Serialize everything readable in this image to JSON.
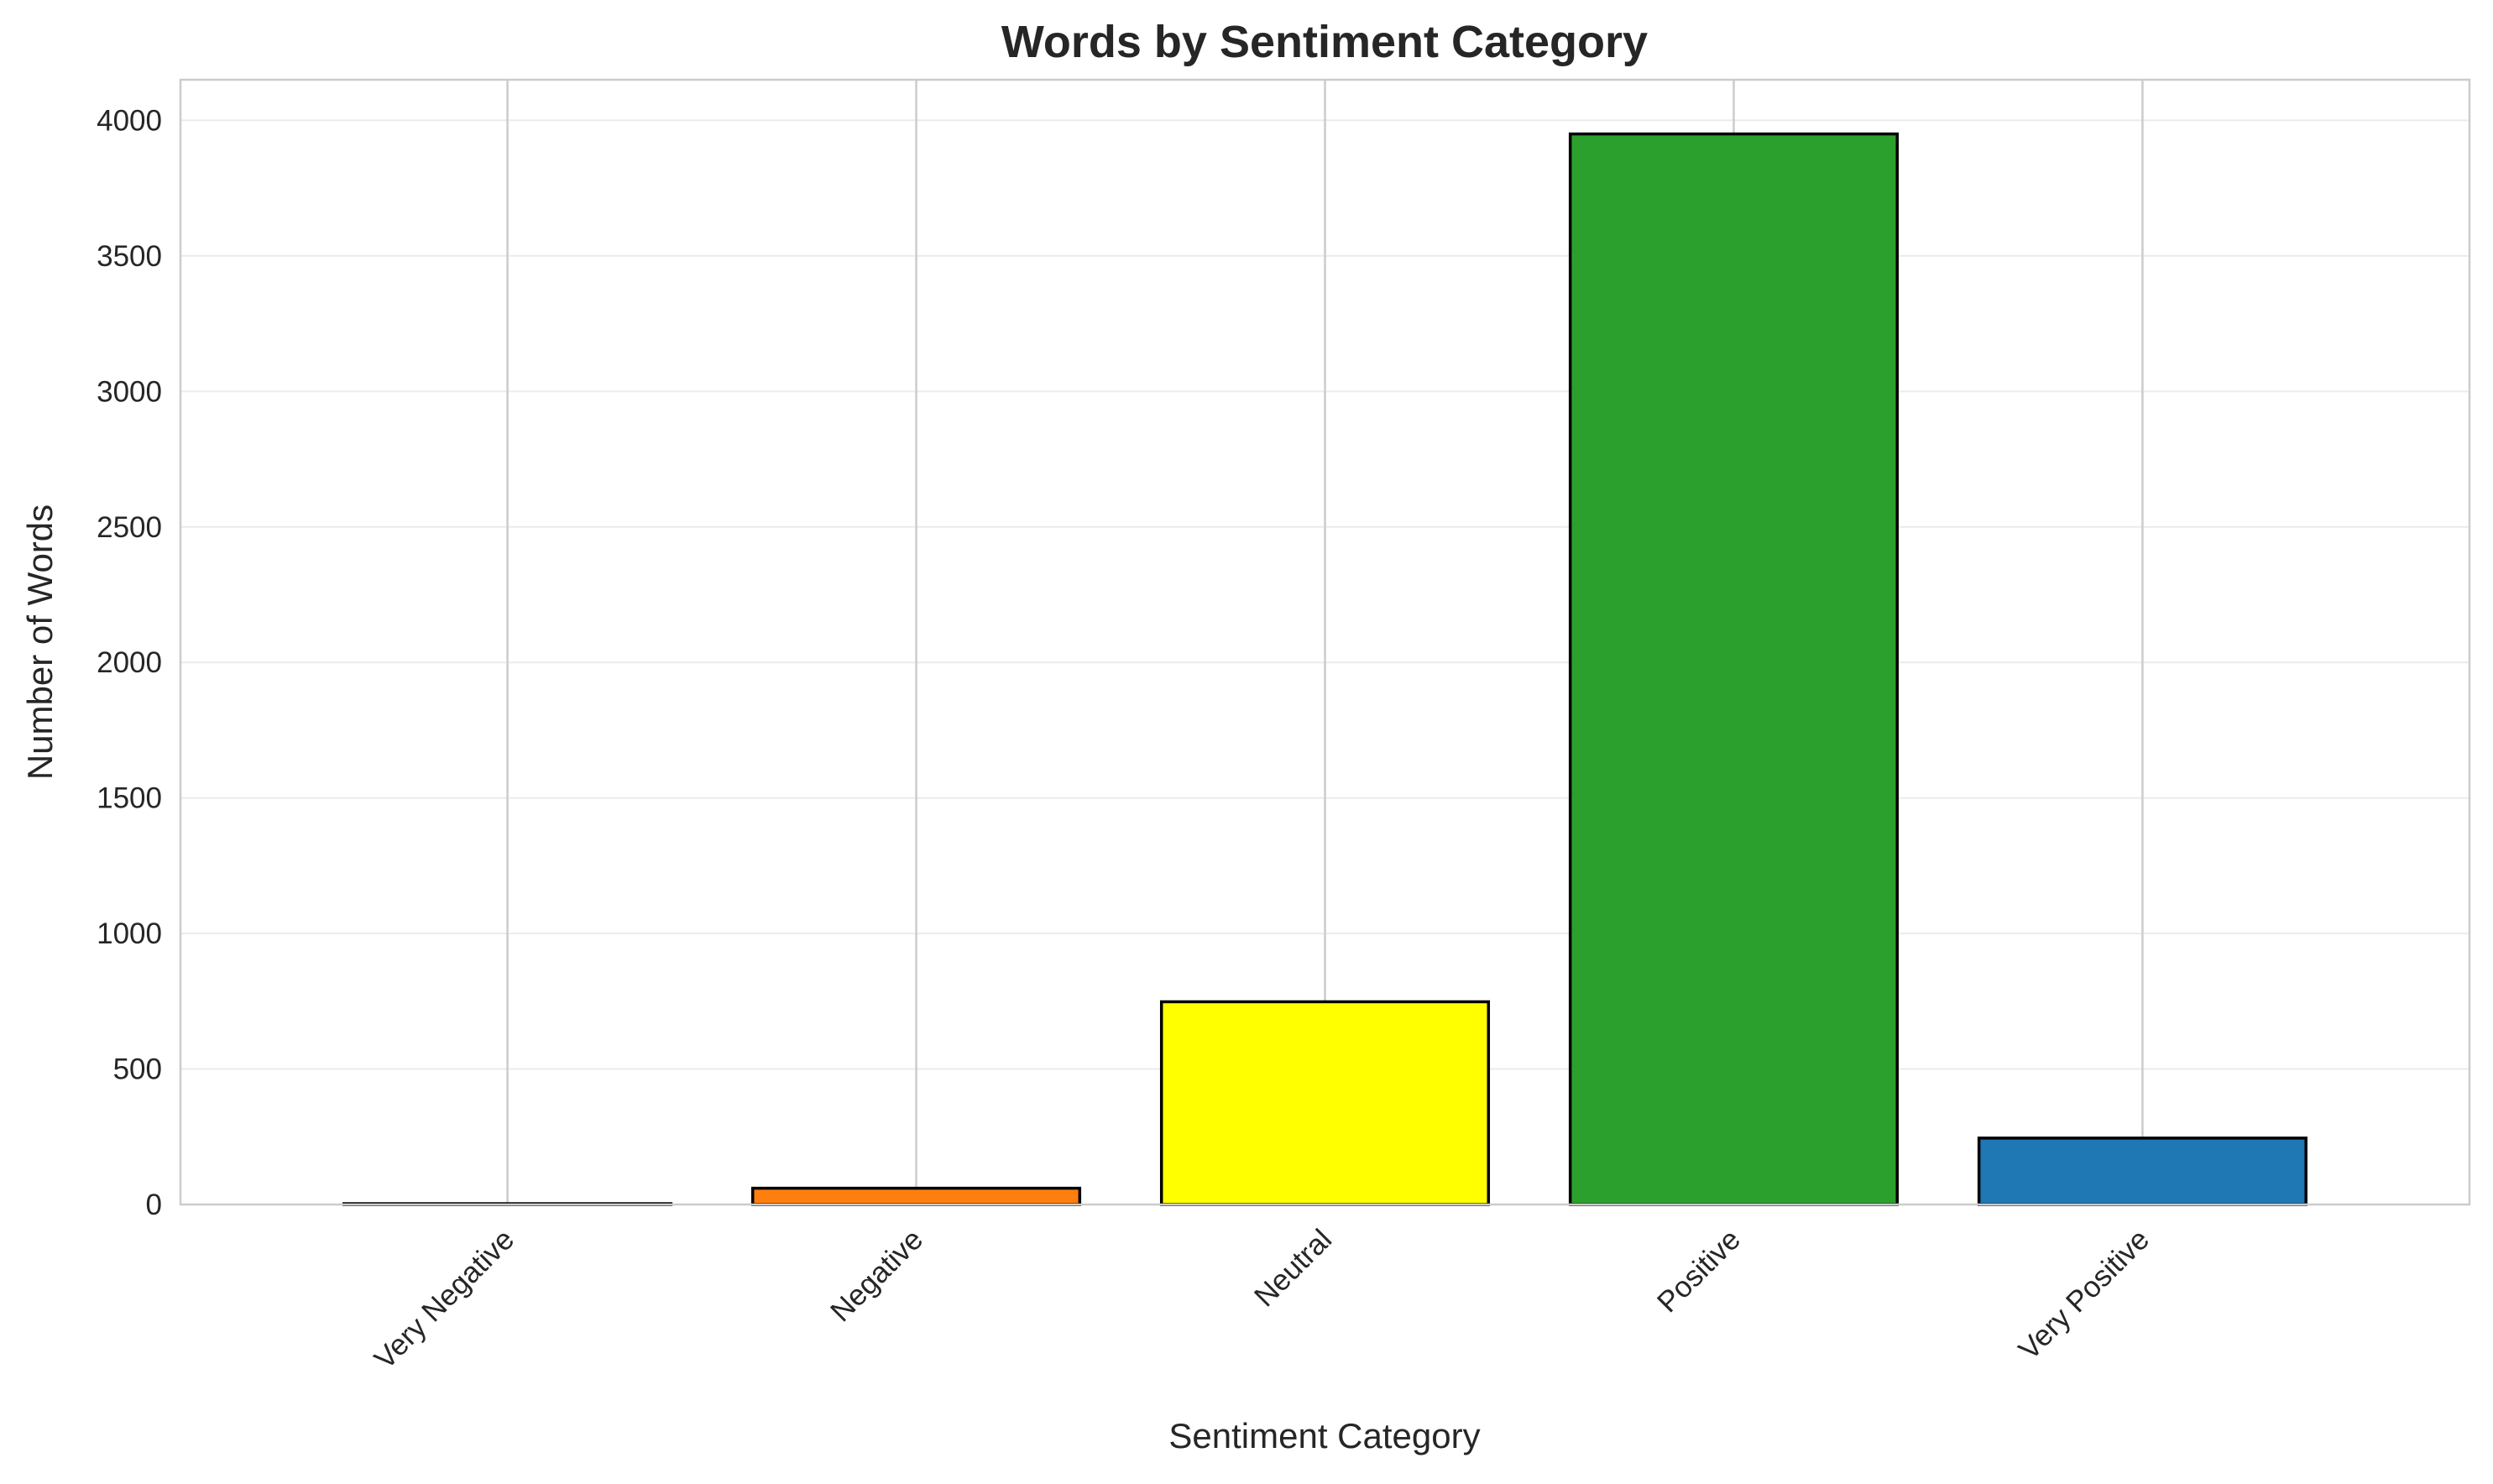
{
  "chart_data": {
    "type": "bar",
    "title": "Words by Sentiment Category",
    "xlabel": "Sentiment Category",
    "ylabel": "Number of Words",
    "categories": [
      "Very Negative",
      "Negative",
      "Neutral",
      "Positive",
      "Very Positive"
    ],
    "values": [
      3,
      60,
      748,
      3950,
      245
    ],
    "colors": [
      "#808080",
      "#ff7f0e",
      "#ffff00",
      "#2ca02c",
      "#1f77b4"
    ],
    "edge_color": "#000000",
    "ylim": [
      0,
      4150
    ],
    "yticks": [
      0,
      500,
      1000,
      1500,
      2000,
      2500,
      3000,
      3500,
      4000
    ],
    "xtick_rotation": 45,
    "grid": true,
    "legend": "none"
  }
}
